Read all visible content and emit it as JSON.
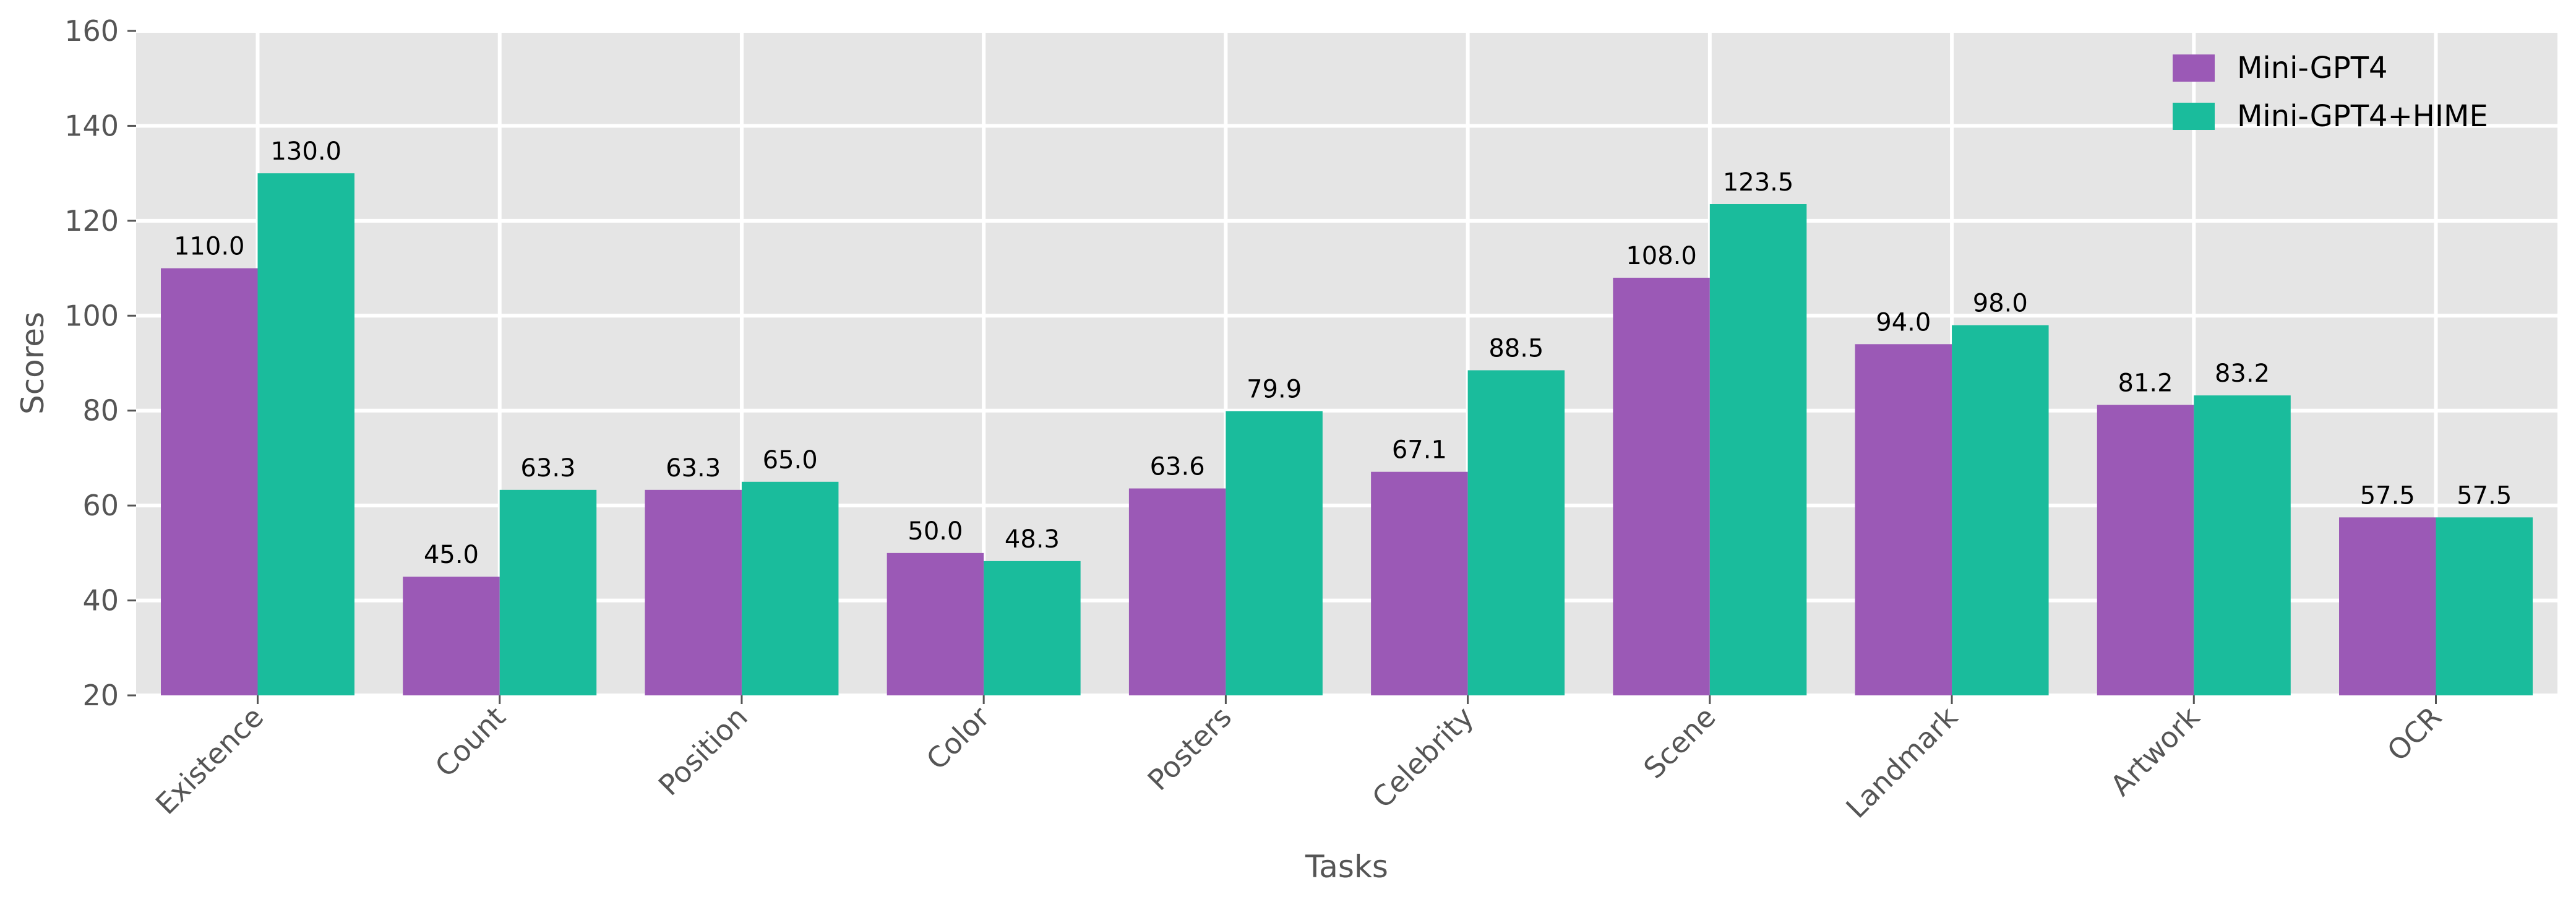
{
  "chart_data": {
    "type": "bar",
    "title": "",
    "xlabel": "Tasks",
    "ylabel": "Scores",
    "ylim": [
      20,
      160
    ],
    "yticks": [
      20,
      40,
      60,
      80,
      100,
      120,
      140,
      160
    ],
    "grid": true,
    "legend_position": "top-right",
    "categories": [
      "Existence",
      "Count",
      "Position",
      "Color",
      "Posters",
      "Celebrity",
      "Scene",
      "Landmark",
      "Artwork",
      "OCR"
    ],
    "series": [
      {
        "name": "Mini-GPT4",
        "color": "#9B59B6",
        "values": [
          110.0,
          45.0,
          63.3,
          50.0,
          63.6,
          67.1,
          108.0,
          94.0,
          81.2,
          57.5
        ],
        "labels": [
          "110.0",
          "45.0",
          "63.3",
          "50.0",
          "63.6",
          "67.1",
          "108.0",
          "94.0",
          "81.2",
          "57.5"
        ]
      },
      {
        "name": "Mini-GPT4+HIME",
        "color": "#1ABC9C",
        "values": [
          130.0,
          63.3,
          65.0,
          48.3,
          79.9,
          88.5,
          123.5,
          98.0,
          83.2,
          57.5
        ],
        "labels": [
          "130.0",
          "63.3",
          "65.0",
          "48.3",
          "79.9",
          "88.5",
          "123.5",
          "98.0",
          "83.2",
          "57.5"
        ]
      }
    ]
  }
}
